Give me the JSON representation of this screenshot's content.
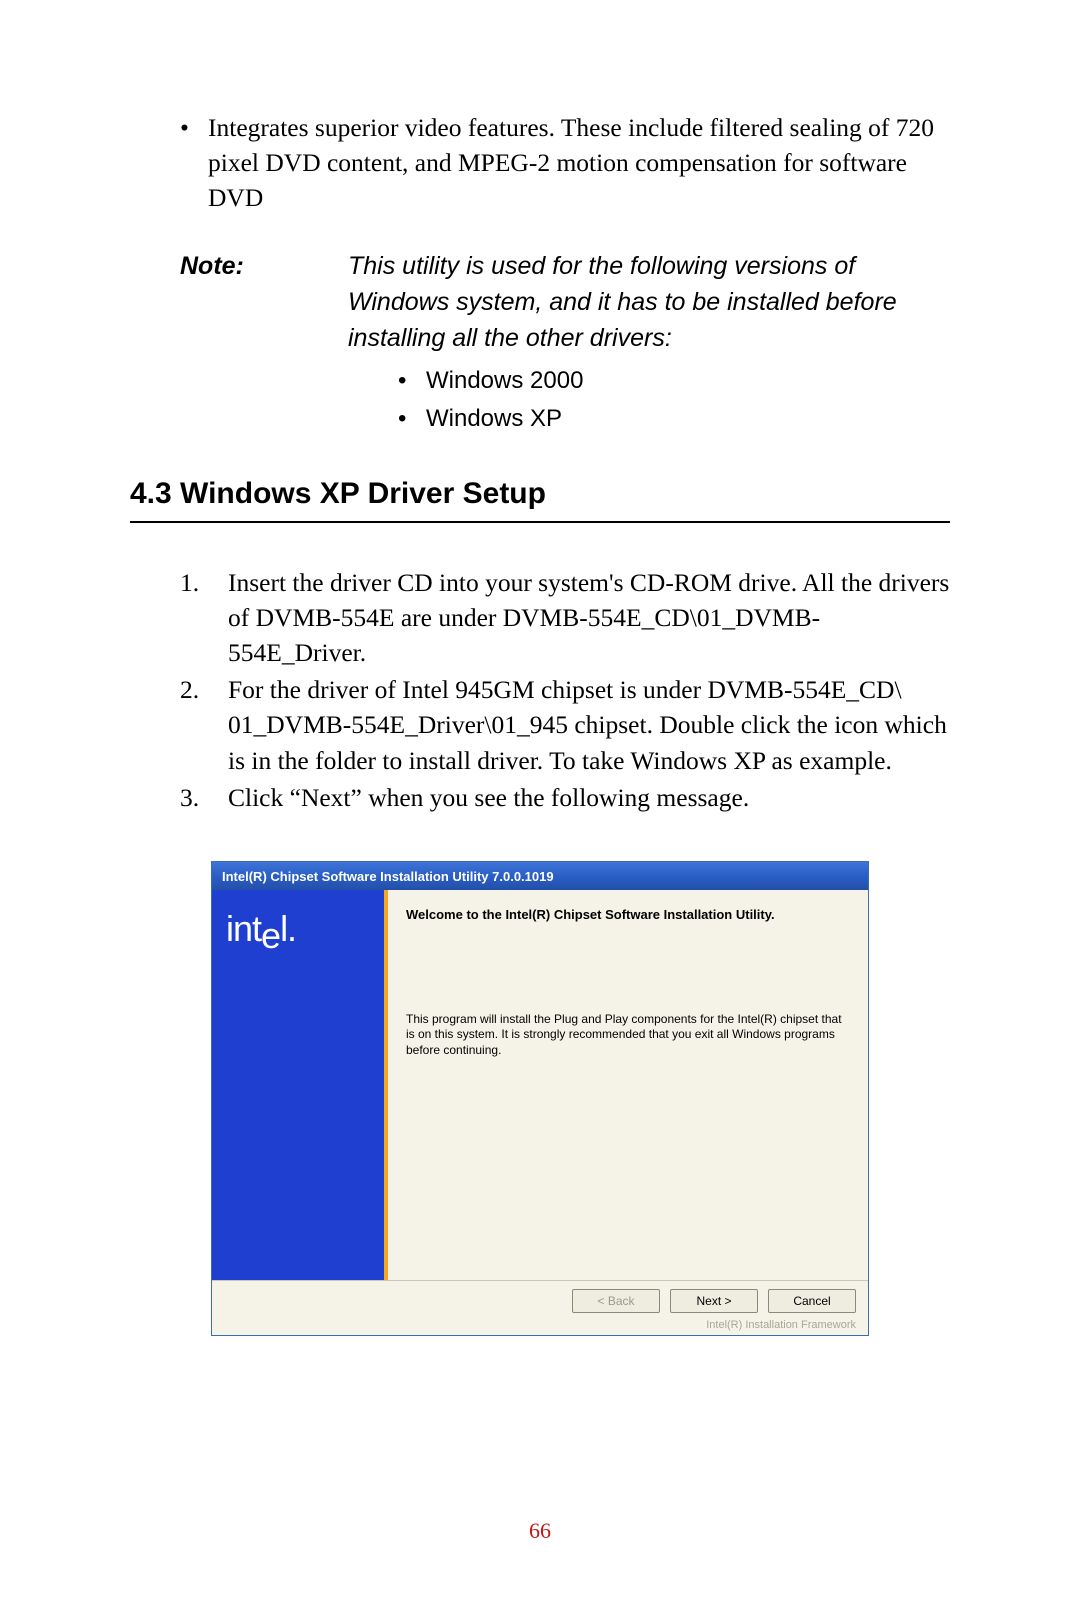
{
  "bullet1": {
    "text": "Integrates superior video features. These include filtered sealing of 720 pixel DVD content, and MPEG-2 motion compensation for software DVD"
  },
  "note": {
    "label": "Note:",
    "body": "This utility is used for the following versions of Windows system, and it has to be installed before installing all the other drivers:",
    "items": [
      "Windows 2000",
      "Windows XP"
    ]
  },
  "section": {
    "heading": "4.3  Windows XP Driver Setup"
  },
  "steps": {
    "s1": "Insert the driver CD into your system's CD-ROM drive. All the drivers of DVMB-554E are under DVMB-554E_CD\\01_DVMB-554E_Driver.",
    "s2": "For the driver of Intel 945GM chipset is under DVMB-554E_CD\\ 01_DVMB-554E_Driver\\01_945 chipset. Double click the icon which is in the folder to install driver. To take Windows XP as example.",
    "s3": " Click “Next” when you see the following message."
  },
  "dialog": {
    "title": "Intel(R) Chipset Software Installation Utility 7.0.0.1019",
    "logo_prefix": "int",
    "logo_drop": "e",
    "logo_suffix": "l.",
    "logo_reg": "",
    "heading": "Welcome to the Intel(R) Chipset Software Installation Utility.",
    "desc": "This program will install the Plug and Play components for the Intel(R) chipset that is on this system. It is strongly recommended that you exit all Windows programs before continuing.",
    "back": "< Back",
    "next": "Next >",
    "cancel": "Cancel",
    "framework": "Intel(R) Installation Framework"
  },
  "page_number": "66",
  "colors": {
    "titlebar_bg": "#2a5fc7",
    "sidebar_bg": "#1f3fd1",
    "accent_orange": "#f7a823",
    "dialog_bg": "#f5f3e7",
    "page_num": "#c41414"
  }
}
